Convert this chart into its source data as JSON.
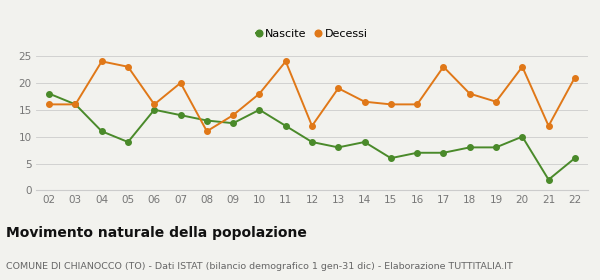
{
  "years": [
    "02",
    "03",
    "04",
    "05",
    "06",
    "07",
    "08",
    "09",
    "10",
    "11",
    "12",
    "13",
    "14",
    "15",
    "16",
    "17",
    "18",
    "19",
    "20",
    "21",
    "22"
  ],
  "nascite": [
    18,
    16,
    11,
    9,
    15,
    14,
    13,
    12.5,
    15,
    12,
    9,
    8,
    9,
    6,
    7,
    7,
    8,
    8,
    10,
    2,
    6
  ],
  "decessi": [
    16,
    16,
    24,
    23,
    16,
    20,
    11,
    14,
    18,
    24,
    12,
    19,
    16.5,
    16,
    16,
    23,
    18,
    16.5,
    23,
    12,
    21
  ],
  "nascite_color": "#4a8a2a",
  "decessi_color": "#e07818",
  "background_color": "#f2f2ee",
  "grid_color": "#cccccc",
  "ylim": [
    0,
    25
  ],
  "yticks": [
    0,
    5,
    10,
    15,
    20,
    25
  ],
  "title": "Movimento naturale della popolazione",
  "subtitle": "COMUNE DI CHIANOCCO (TO) - Dati ISTAT (bilancio demografico 1 gen-31 dic) - Elaborazione TUTTITALIA.IT",
  "legend_nascite": "Nascite",
  "legend_decessi": "Decessi",
  "title_fontsize": 10,
  "subtitle_fontsize": 6.8,
  "legend_fontsize": 8,
  "tick_fontsize": 7.5,
  "marker_size": 4,
  "line_width": 1.4
}
